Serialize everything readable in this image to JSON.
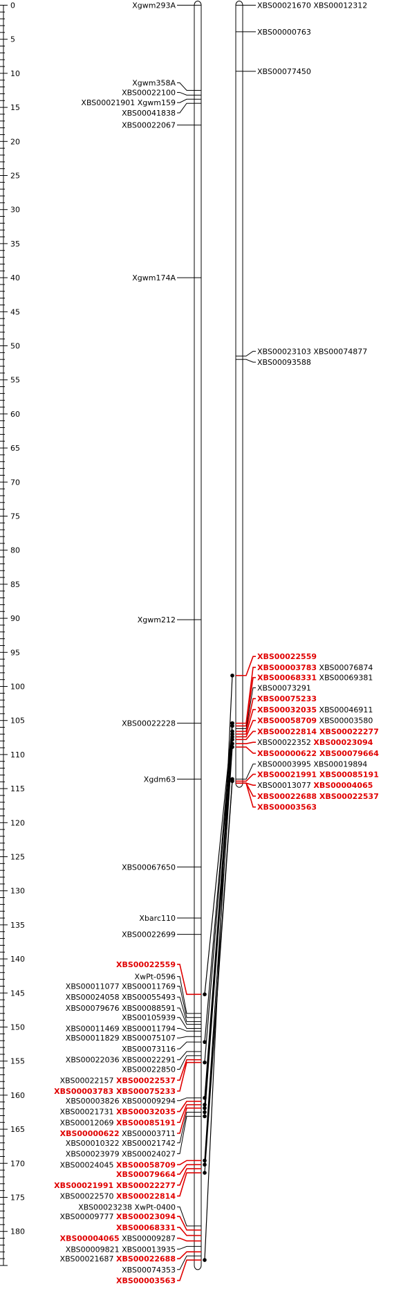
{
  "scale": {
    "labels": [
      "0",
      "5",
      "10",
      "15",
      "20",
      "25",
      "30",
      "35",
      "40",
      "45",
      "50",
      "55",
      "60",
      "65",
      "70",
      "75",
      "80",
      "85",
      "90",
      "95",
      "100",
      "105",
      "110",
      "115",
      "120",
      "125",
      "130",
      "135",
      "140",
      "145",
      "150",
      "155",
      "160",
      "165",
      "170",
      "175",
      "180"
    ],
    "max_cm": 185
  },
  "colors": {
    "highlight": "#e00000",
    "line": "#000000"
  },
  "chromosomes": [
    {
      "id": "left",
      "length_cm": 185,
      "markers": [
        {
          "cm": 0.0,
          "label_cm": 0.0,
          "text": "Xgwm293A"
        },
        {
          "cm": 12.5,
          "label_cm": 11.4,
          "text": "Xgwm358A"
        },
        {
          "cm": 13.2,
          "label_cm": 12.8,
          "text": "XBS00022100"
        },
        {
          "cm": 13.8,
          "label_cm": 14.3,
          "text": "XBS00021901 Xgwm159"
        },
        {
          "cm": 14.4,
          "label_cm": 15.8,
          "text": "XBS00041838"
        },
        {
          "cm": 17.6,
          "label_cm": 17.6,
          "text": "XBS00022067"
        },
        {
          "cm": 40.0,
          "label_cm": 40.0,
          "text": "Xgwm174A"
        },
        {
          "cm": 90.2,
          "label_cm": 90.2,
          "text": "Xgwm212"
        },
        {
          "cm": 105.4,
          "label_cm": 105.4,
          "text": "XBS00022228"
        },
        {
          "cm": 113.6,
          "label_cm": 113.6,
          "text": "Xgdm63"
        },
        {
          "cm": 126.5,
          "label_cm": 126.5,
          "text": "XBS00067650"
        },
        {
          "cm": 134.0,
          "label_cm": 134.0,
          "text": "Xbarc110"
        },
        {
          "cm": 136.4,
          "label_cm": 136.4,
          "text": "XBS00022699"
        },
        {
          "cm": 145.2,
          "label_cm": 140.8,
          "segments": [
            {
              "t": "XBS00022559",
              "hl": true
            }
          ]
        },
        {
          "cm": 148.0,
          "label_cm": 142.6,
          "segments": [
            {
              "t": "XwPt-0596",
              "hl": false
            }
          ]
        },
        {
          "cm": 148.6,
          "label_cm": 144.0,
          "segments": [
            {
              "t": "XBS00011077 XBS00011769",
              "hl": false
            }
          ]
        },
        {
          "cm": 149.2,
          "label_cm": 145.6,
          "segments": [
            {
              "t": "XBS00024058 XBS00055493",
              "hl": false
            }
          ]
        },
        {
          "cm": 149.6,
          "label_cm": 147.2,
          "segments": [
            {
              "t": "XBS00079676 XBS00088591",
              "hl": false
            }
          ]
        },
        {
          "cm": 150.2,
          "label_cm": 148.6,
          "segments": [
            {
              "t": "XBS00105939",
              "hl": false
            }
          ]
        },
        {
          "cm": 150.6,
          "label_cm": 150.2,
          "segments": [
            {
              "t": "XBS00011469 XBS00011794",
              "hl": false
            }
          ]
        },
        {
          "cm": 151.4,
          "label_cm": 151.6,
          "segments": [
            {
              "t": "XBS00011829 XBS00075107",
              "hl": false
            }
          ]
        },
        {
          "cm": 152.2,
          "label_cm": 153.2,
          "segments": [
            {
              "t": "XBS00073116",
              "hl": false
            }
          ]
        },
        {
          "cm": 153.6,
          "label_cm": 154.8,
          "segments": [
            {
              "t": "XBS00022036 XBS00022291",
              "hl": false
            }
          ]
        },
        {
          "cm": 154.2,
          "label_cm": 156.2,
          "segments": [
            {
              "t": "XBS00022850",
              "hl": false
            }
          ]
        },
        {
          "cm": 154.8,
          "label_cm": 157.8,
          "segments": [
            {
              "t": "XBS00022157 ",
              "hl": false
            },
            {
              "t": "XBS00022537",
              "hl": true
            }
          ]
        },
        {
          "cm": 155.2,
          "label_cm": 159.4,
          "segments": [
            {
              "t": "XBS00003783 XBS00075233",
              "hl": true
            }
          ]
        },
        {
          "cm": 160.4,
          "label_cm": 160.8,
          "segments": [
            {
              "t": "XBS00003826 XBS00009294",
              "hl": false
            }
          ]
        },
        {
          "cm": 160.9,
          "label_cm": 162.4,
          "segments": [
            {
              "t": "XBS00021731 ",
              "hl": false
            },
            {
              "t": "XBS00032035",
              "hl": true
            }
          ]
        },
        {
          "cm": 161.4,
          "label_cm": 164.0,
          "segments": [
            {
              "t": "XBS00012069 ",
              "hl": false
            },
            {
              "t": "XBS00085191",
              "hl": true
            }
          ]
        },
        {
          "cm": 161.9,
          "label_cm": 165.6,
          "segments": [
            {
              "t": "XBS00000622",
              "hl": true
            },
            {
              "t": " XBS00003711",
              "hl": false
            }
          ]
        },
        {
          "cm": 162.5,
          "label_cm": 167.0,
          "segments": [
            {
              "t": "XBS00010322 XBS00021742",
              "hl": false
            }
          ]
        },
        {
          "cm": 163.1,
          "label_cm": 168.6,
          "segments": [
            {
              "t": "XBS00023979 XBS00024027",
              "hl": false
            }
          ]
        },
        {
          "cm": 169.6,
          "label_cm": 170.2,
          "segments": [
            {
              "t": "XBS00024045 ",
              "hl": false
            },
            {
              "t": "XBS00058709",
              "hl": true
            }
          ]
        },
        {
          "cm": 170.2,
          "label_cm": 171.6,
          "segments": [
            {
              "t": "XBS00079664",
              "hl": true
            }
          ]
        },
        {
          "cm": 170.8,
          "label_cm": 173.2,
          "segments": [
            {
              "t": "XBS00021991 XBS00022277",
              "hl": true
            }
          ]
        },
        {
          "cm": 171.4,
          "label_cm": 174.8,
          "segments": [
            {
              "t": "XBS00022570 ",
              "hl": false
            },
            {
              "t": "XBS00022814",
              "hl": true
            }
          ]
        },
        {
          "cm": 179.2,
          "label_cm": 176.4,
          "segments": [
            {
              "t": "XBS00023238 XwPt-0400",
              "hl": false
            }
          ]
        },
        {
          "cm": 179.8,
          "label_cm": 177.8,
          "segments": [
            {
              "t": "XBS00009777 ",
              "hl": false
            },
            {
              "t": "XBS00023094",
              "hl": true
            }
          ]
        },
        {
          "cm": 180.6,
          "label_cm": 179.4,
          "segments": [
            {
              "t": "XBS00068331",
              "hl": true
            }
          ]
        },
        {
          "cm": 181.4,
          "label_cm": 181.0,
          "segments": [
            {
              "t": "XBS00004065",
              "hl": true
            },
            {
              "t": " XBS00009287",
              "hl": false
            }
          ]
        },
        {
          "cm": 182.2,
          "label_cm": 182.6,
          "segments": [
            {
              "t": "XBS00009821 XBS00013935",
              "hl": false
            }
          ]
        },
        {
          "cm": 183.0,
          "label_cm": 184.0,
          "segments": [
            {
              "t": "XBS00021687 ",
              "hl": false
            },
            {
              "t": "XBS00022688",
              "hl": true
            }
          ]
        },
        {
          "cm": 183.6,
          "label_cm": 185.6,
          "segments": [
            {
              "t": "XBS00074353",
              "hl": false
            }
          ]
        },
        {
          "cm": 184.2,
          "label_cm": 187.2,
          "segments": [
            {
              "t": "XBS00003563",
              "hl": true
            }
          ]
        }
      ]
    },
    {
      "id": "right",
      "length_cm": 114.2,
      "markers": [
        {
          "cm": 0.0,
          "label_cm": 0.0,
          "text": "XBS00021670 XBS00012312"
        },
        {
          "cm": 3.9,
          "label_cm": 3.9,
          "text": "XBS00000763"
        },
        {
          "cm": 9.7,
          "label_cm": 9.7,
          "text": "XBS00077450"
        },
        {
          "cm": 51.5,
          "label_cm": 50.8,
          "text": "XBS00023103 XBS00074877"
        },
        {
          "cm": 52.0,
          "label_cm": 52.4,
          "text": "XBS00093588"
        },
        {
          "cm": 98.4,
          "label_cm": 95.6,
          "segments": [
            {
              "t": "XBS00022559",
              "hl": true
            }
          ]
        },
        {
          "cm": 105.4,
          "label_cm": 97.2,
          "segments": [
            {
              "t": "XBS00003783",
              "hl": true
            },
            {
              "t": " XBS00076874",
              "hl": false
            }
          ]
        },
        {
          "cm": 105.8,
          "label_cm": 98.7,
          "segments": [
            {
              "t": "XBS00068331",
              "hl": true
            },
            {
              "t": " XBS00069381",
              "hl": false
            }
          ]
        },
        {
          "cm": 106.2,
          "label_cm": 100.2,
          "segments": [
            {
              "t": "XBS00073291",
              "hl": false
            }
          ]
        },
        {
          "cm": 106.6,
          "label_cm": 101.8,
          "segments": [
            {
              "t": "XBS00075233",
              "hl": true
            }
          ]
        },
        {
          "cm": 107.0,
          "label_cm": 103.4,
          "segments": [
            {
              "t": "XBS00032035",
              "hl": true
            },
            {
              "t": " XBS00046911",
              "hl": false
            }
          ]
        },
        {
          "cm": 107.4,
          "label_cm": 105.0,
          "segments": [
            {
              "t": "XBS00058709",
              "hl": true
            },
            {
              "t": " XBS00003580",
              "hl": false
            }
          ]
        },
        {
          "cm": 107.8,
          "label_cm": 106.6,
          "segments": [
            {
              "t": "XBS00022814 XBS00022277",
              "hl": true
            }
          ]
        },
        {
          "cm": 108.4,
          "label_cm": 108.2,
          "segments": [
            {
              "t": "XBS00022352 ",
              "hl": false
            },
            {
              "t": "XBS00023094",
              "hl": true
            }
          ]
        },
        {
          "cm": 108.9,
          "label_cm": 109.8,
          "segments": [
            {
              "t": "XBS00000622 XBS00079664",
              "hl": true
            }
          ]
        },
        {
          "cm": 113.6,
          "label_cm": 111.4,
          "segments": [
            {
              "t": "XBS00003995 XBS00019894",
              "hl": false
            }
          ]
        },
        {
          "cm": 113.9,
          "label_cm": 112.9,
          "segments": [
            {
              "t": "XBS00021991 XBS00085191",
              "hl": true
            }
          ]
        },
        {
          "cm": 114.2,
          "label_cm": 114.5,
          "segments": [
            {
              "t": "XBS00013077 ",
              "hl": false
            },
            {
              "t": "XBS00004065",
              "hl": true
            }
          ]
        },
        {
          "cm": 114.2,
          "label_cm": 116.1,
          "segments": [
            {
              "t": "XBS00022688 XBS00022537",
              "hl": true
            }
          ]
        },
        {
          "cm": 114.2,
          "label_cm": 117.7,
          "segments": [
            {
              "t": "XBS00003563",
              "hl": true
            }
          ]
        }
      ]
    }
  ],
  "links": [
    {
      "left_cm": 184.2,
      "right_cm": 98.4
    },
    {
      "left_cm": 145.2,
      "right_cm": 105.4
    },
    {
      "left_cm": 152.2,
      "right_cm": 105.4
    },
    {
      "left_cm": 155.2,
      "right_cm": 105.8
    },
    {
      "left_cm": 160.4,
      "right_cm": 106.6
    },
    {
      "left_cm": 161.4,
      "right_cm": 107.0
    },
    {
      "left_cm": 161.9,
      "right_cm": 107.4
    },
    {
      "left_cm": 162.5,
      "right_cm": 107.8
    },
    {
      "left_cm": 163.1,
      "right_cm": 108.4
    },
    {
      "left_cm": 169.6,
      "right_cm": 108.9
    },
    {
      "left_cm": 170.2,
      "right_cm": 113.6
    },
    {
      "left_cm": 171.4,
      "right_cm": 113.9
    }
  ]
}
